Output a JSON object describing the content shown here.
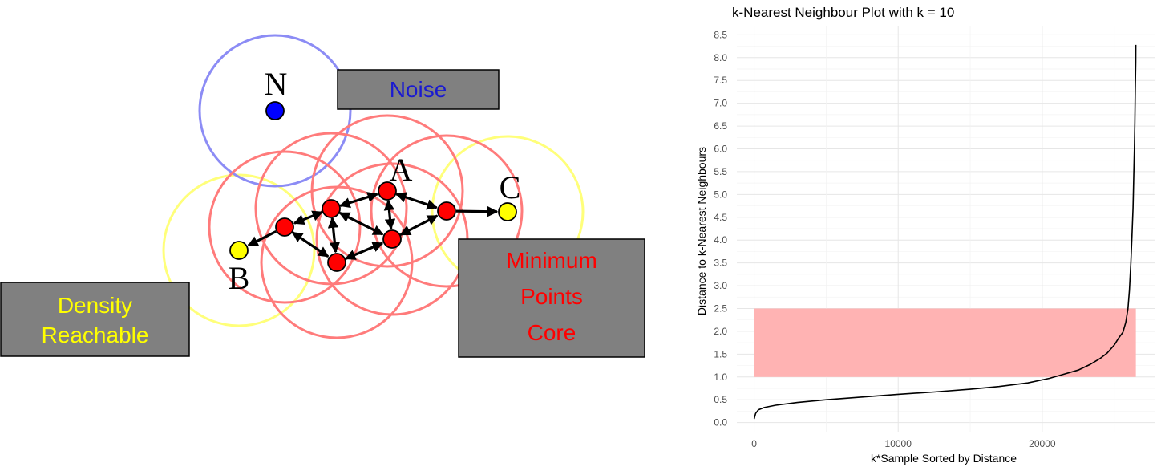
{
  "diagram": {
    "colors": {
      "core": "#ff0000",
      "border": "#ffff00",
      "noise": "#0000ff",
      "core_ring": "#ff7b7b",
      "border_ring": "#ffff7a",
      "noise_ring": "#8c8cf5",
      "box_fill": "#808080",
      "noise_text": "#1a1ad0",
      "density_text": "#ffff00",
      "core_text": "#ff0000"
    },
    "point_labels": {
      "noise": "N",
      "core_top": "A",
      "border_left": "B",
      "border_right": "C"
    },
    "boxes": {
      "noise": {
        "lines": [
          "Noise"
        ]
      },
      "density": {
        "lines": [
          "Density",
          "Reachable"
        ]
      },
      "core": {
        "lines": [
          "Minimum",
          "Points",
          "Core"
        ]
      }
    }
  },
  "chart_data": {
    "type": "line",
    "title": "k-Nearest Neighbour Plot with k = 10",
    "xlabel": "k*Sample Sorted by Distance",
    "ylabel": "Distance to k-Nearest Neighbours",
    "xlim": [
      -1200,
      27800
    ],
    "ylim": [
      -0.2,
      8.7
    ],
    "x_ticks": [
      0,
      10000,
      20000
    ],
    "x_tick_labels": [
      "0",
      "10000",
      "20000"
    ],
    "y_ticks": [
      0.0,
      0.5,
      1.0,
      1.5,
      2.0,
      2.5,
      3.0,
      3.5,
      4.0,
      4.5,
      5.0,
      5.5,
      6.0,
      6.5,
      7.0,
      7.5,
      8.0,
      8.5
    ],
    "y_tick_labels": [
      "0.0",
      "0.5",
      "1.0",
      "1.5",
      "2.0",
      "2.5",
      "3.0",
      "3.5",
      "4.0",
      "4.5",
      "5.0",
      "5.5",
      "6.0",
      "6.5",
      "7.0",
      "7.5",
      "8.0",
      "8.5"
    ],
    "grid": true,
    "line_color": "#000000",
    "highlight": {
      "x": [
        0,
        26500
      ],
      "y": [
        1.0,
        2.5
      ],
      "color": "#ffb3b3"
    },
    "series": [
      {
        "x": [
          0,
          100,
          300,
          700,
          1500,
          3000,
          5000,
          7500,
          10000,
          12500,
          15000,
          17000,
          19000,
          20500,
          21500,
          22500,
          23300,
          24000,
          24500,
          25000,
          25300,
          25600,
          25800,
          25950,
          26050,
          26150,
          26230,
          26300,
          26350,
          26400,
          26430,
          26460,
          26490,
          26500
        ],
        "y": [
          0.08,
          0.2,
          0.28,
          0.33,
          0.38,
          0.44,
          0.5,
          0.56,
          0.62,
          0.67,
          0.73,
          0.79,
          0.87,
          0.97,
          1.06,
          1.15,
          1.27,
          1.4,
          1.52,
          1.7,
          1.85,
          1.98,
          2.2,
          2.5,
          2.9,
          3.5,
          4.1,
          4.7,
          5.4,
          6.0,
          6.6,
          7.3,
          7.9,
          8.28
        ]
      }
    ]
  }
}
